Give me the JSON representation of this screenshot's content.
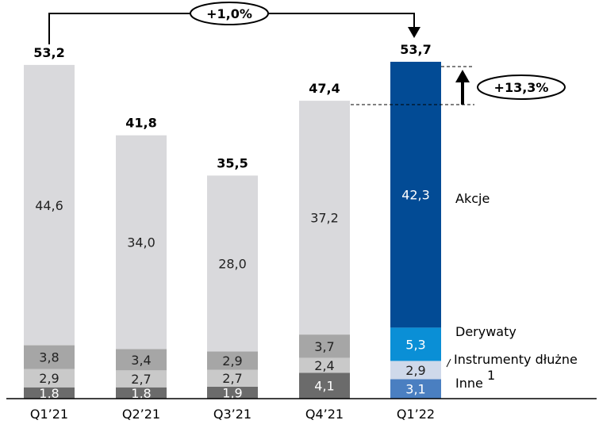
{
  "chart_data": {
    "type": "bar",
    "stacked": true,
    "categories": [
      "Q1’21",
      "Q2’21",
      "Q3’21",
      "Q4’21",
      "Q1’22"
    ],
    "series": [
      {
        "name": "Inne",
        "values": [
          1.8,
          1.8,
          1.9,
          4.1,
          3.1
        ],
        "labels": [
          "1,8",
          "1,8",
          "1,9",
          "4,1",
          "3,1"
        ]
      },
      {
        "name": "Instrumenty dłużne",
        "values": [
          2.9,
          2.7,
          2.7,
          2.4,
          2.9
        ],
        "labels": [
          "2,9",
          "2,7",
          "2,7",
          "2,4",
          "2,9"
        ]
      },
      {
        "name": "Derywaty",
        "values": [
          3.8,
          3.4,
          2.9,
          3.7,
          5.3
        ],
        "labels": [
          "3,8",
          "3,4",
          "2,9",
          "3,7",
          "5,3"
        ]
      },
      {
        "name": "Akcje",
        "values": [
          44.6,
          34.0,
          28.0,
          37.2,
          42.3
        ],
        "labels": [
          "44,6",
          "34,0",
          "28,0",
          "37,2",
          "42,3"
        ]
      }
    ],
    "totals": [
      53.2,
      41.8,
      35.5,
      47.4,
      53.7
    ],
    "total_labels": [
      "53,2",
      "41,8",
      "35,5",
      "47,4",
      "53,7"
    ],
    "legend_superscript": "1",
    "annotations": {
      "yoy": "+1,0%",
      "qoq": "+13,3%"
    },
    "colors": {
      "grey": {
        "Inne": "#6b6b6b",
        "Instrumenty dłużne": "#c9c9c9",
        "Derywaty": "#a6a6a6",
        "Akcje": "#d9d9dc"
      },
      "highlight": {
        "Inne": "#4a7fc1",
        "Instrumenty dłużne": "#cfd9ea",
        "Derywaty": "#0a8fd6",
        "Akcje": "#024b95"
      },
      "label_light": "#ffffff",
      "label_dark": "#222222"
    },
    "highlight_index": 4,
    "xlabel": "",
    "ylabel": "",
    "ylim": [
      0,
      54
    ]
  }
}
